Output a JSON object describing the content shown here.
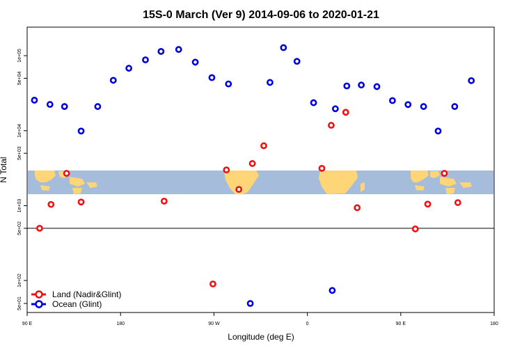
{
  "chart_data": {
    "type": "scatter",
    "title": "15S-0 March (Ver 9)   2014-09-06 to 2020-01-21",
    "xlabel": "Longitude (deg E)",
    "ylabel": "N Total",
    "x_ticks": [
      "90 E",
      "180",
      "90 W",
      "0",
      "90 E",
      "180"
    ],
    "y_ticks": [
      "5e+01",
      "1e+02",
      "5e+02",
      "1e+03",
      "5e+03",
      "1e+04",
      "5e+04",
      "1e+05"
    ],
    "grid": false,
    "legend_position": "bottom-left",
    "colors": {
      "land": "#ee1111",
      "ocean": "#0000dd",
      "map_ocean": "#a5bcdb",
      "map_land": "#ffd677"
    },
    "series": [
      {
        "name": "Land (Nadir&Glint)",
        "key": "land",
        "points": [
          {
            "x": 102,
            "y": 500
          },
          {
            "x": 113,
            "y": 1040
          },
          {
            "x": 128,
            "y": 2700
          },
          {
            "x": 142,
            "y": 1120
          },
          {
            "x": 222,
            "y": 1150
          },
          {
            "x": 269,
            "y": 90
          },
          {
            "x": 282,
            "y": 3000
          },
          {
            "x": 294,
            "y": 1650
          },
          {
            "x": 307,
            "y": 3650
          },
          {
            "x": 318,
            "y": 6300
          },
          {
            "x": 374,
            "y": 3150
          },
          {
            "x": 383,
            "y": 11800
          },
          {
            "x": 397,
            "y": 17600
          },
          {
            "x": 408,
            "y": 940
          },
          {
            "x": 464,
            "y": 490
          },
          {
            "x": 476,
            "y": 1050
          },
          {
            "x": 492,
            "y": 2700
          },
          {
            "x": 505,
            "y": 1100
          }
        ]
      },
      {
        "name": "Ocean (Glint)",
        "key": "ocean",
        "points": [
          {
            "x": 97,
            "y": 25500
          },
          {
            "x": 112,
            "y": 22400
          },
          {
            "x": 126,
            "y": 21000
          },
          {
            "x": 142,
            "y": 9900
          },
          {
            "x": 158,
            "y": 21000
          },
          {
            "x": 173,
            "y": 47000
          },
          {
            "x": 188,
            "y": 68000
          },
          {
            "x": 204,
            "y": 88000
          },
          {
            "x": 219,
            "y": 114000
          },
          {
            "x": 236,
            "y": 121000
          },
          {
            "x": 252,
            "y": 82000
          },
          {
            "x": 268,
            "y": 51000
          },
          {
            "x": 284,
            "y": 42000
          },
          {
            "x": 305,
            "y": 50
          },
          {
            "x": 324,
            "y": 44000
          },
          {
            "x": 337,
            "y": 128000
          },
          {
            "x": 350,
            "y": 84000
          },
          {
            "x": 366,
            "y": 23600
          },
          {
            "x": 384,
            "y": 74
          },
          {
            "x": 387,
            "y": 19600
          },
          {
            "x": 398,
            "y": 39500
          },
          {
            "x": 412,
            "y": 40600
          },
          {
            "x": 427,
            "y": 38700
          },
          {
            "x": 442,
            "y": 25200
          },
          {
            "x": 457,
            "y": 22300
          },
          {
            "x": 472,
            "y": 21000
          },
          {
            "x": 486,
            "y": 9900
          },
          {
            "x": 502,
            "y": 21000
          },
          {
            "x": 518,
            "y": 46500
          }
        ]
      }
    ]
  }
}
